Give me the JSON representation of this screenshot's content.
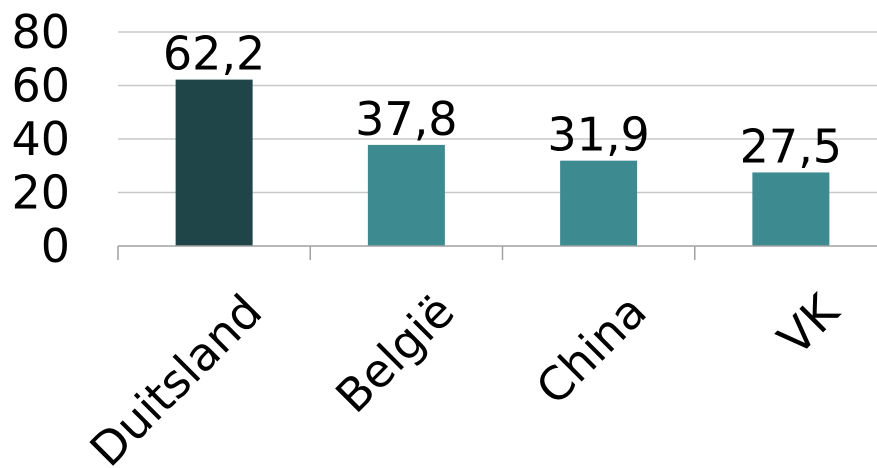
{
  "chart_data": {
    "type": "bar",
    "title": "",
    "xlabel": "",
    "ylabel": "",
    "categories": [
      "Duitsland",
      "België",
      "China",
      "VK"
    ],
    "values": [
      62.2,
      37.8,
      31.9,
      27.5
    ],
    "data_labels": [
      "62,2",
      "37,8",
      "31,9",
      "27,5"
    ],
    "bar_colors": [
      "#1f4548",
      "#3d8a91",
      "#3d8a91",
      "#3d8a91"
    ],
    "ylim": [
      0,
      80
    ],
    "yticks": [
      0,
      20,
      40,
      60,
      80
    ],
    "ytick_labels": [
      "0",
      "20",
      "40",
      "60",
      "80"
    ],
    "grid": true,
    "legend": "none"
  }
}
